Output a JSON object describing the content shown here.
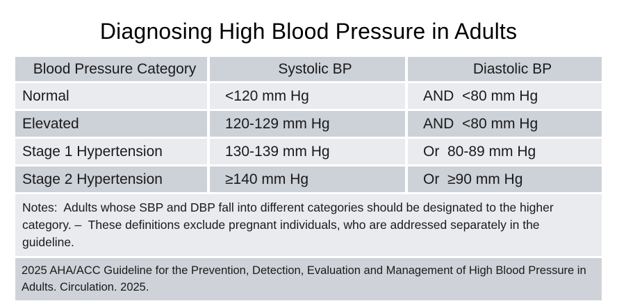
{
  "title": "Diagnosing High Blood Pressure in Adults",
  "table": {
    "headers": {
      "category": "Blood Pressure Category",
      "systolic": "Systolic BP",
      "diastolic": "Diastolic BP"
    },
    "rows": [
      {
        "category": "Normal",
        "systolic": "<120 mm Hg",
        "diastolic": "AND  <80 mm Hg"
      },
      {
        "category": "Elevated",
        "systolic": "120-129 mm Hg",
        "diastolic": "AND  <80 mm Hg"
      },
      {
        "category": "Stage 1 Hypertension",
        "systolic": "130-139 mm Hg",
        "diastolic": "Or  80-89 mm Hg"
      },
      {
        "category": "Stage 2 Hypertension",
        "systolic": "≥140 mm Hg",
        "diastolic": "Or  ≥90 mm Hg"
      }
    ],
    "notes": "Notes:  Adults whose SBP and DBP fall into different categories should be designated to the higher category. –  These definitions exclude pregnant individuals, who are addressed separately in the guideline.",
    "source": "2025 AHA/ACC Guideline for the Prevention, Detection, Evaluation and Management of High Blood Pressure in Adults. Circulation. 2025."
  },
  "colors": {
    "gray_row": "#cdd1d8",
    "light_row": "#e9ebee",
    "footer_bg": "#cfd3d9",
    "text": "#1a1a1a",
    "page_bg": "#ffffff"
  }
}
